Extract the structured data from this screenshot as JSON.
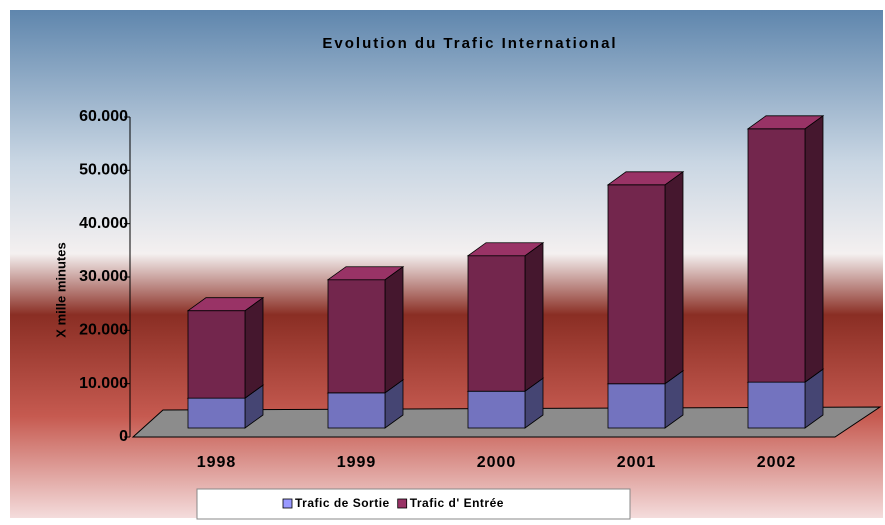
{
  "chart_data": {
    "type": "bar3d_stacked",
    "title": "Evolution du Trafic International",
    "y_label": "X mille minutes",
    "categories": [
      "1998",
      "1999",
      "2000",
      "2001",
      "2002"
    ],
    "series": [
      {
        "name": "Trafic de Sortie",
        "color": "#9999ff",
        "values": [
          5600,
          6600,
          6900,
          8300,
          8600
        ]
      },
      {
        "name": "Trafic d' Entrée",
        "color": "#993366",
        "values": [
          16400,
          21200,
          25400,
          37300,
          47500
        ]
      }
    ],
    "ylim": [
      0,
      60000
    ],
    "yticks": [
      0,
      {
        "value": 10000,
        "label": "10.000"
      },
      {
        "value": 20000,
        "label": "20.000"
      },
      {
        "value": 30000,
        "label": "30.000"
      },
      {
        "value": 40000,
        "label": "40.000"
      },
      {
        "value": 50000,
        "label": "50.000"
      },
      {
        "value": 60000,
        "label": "60.000"
      }
    ]
  }
}
